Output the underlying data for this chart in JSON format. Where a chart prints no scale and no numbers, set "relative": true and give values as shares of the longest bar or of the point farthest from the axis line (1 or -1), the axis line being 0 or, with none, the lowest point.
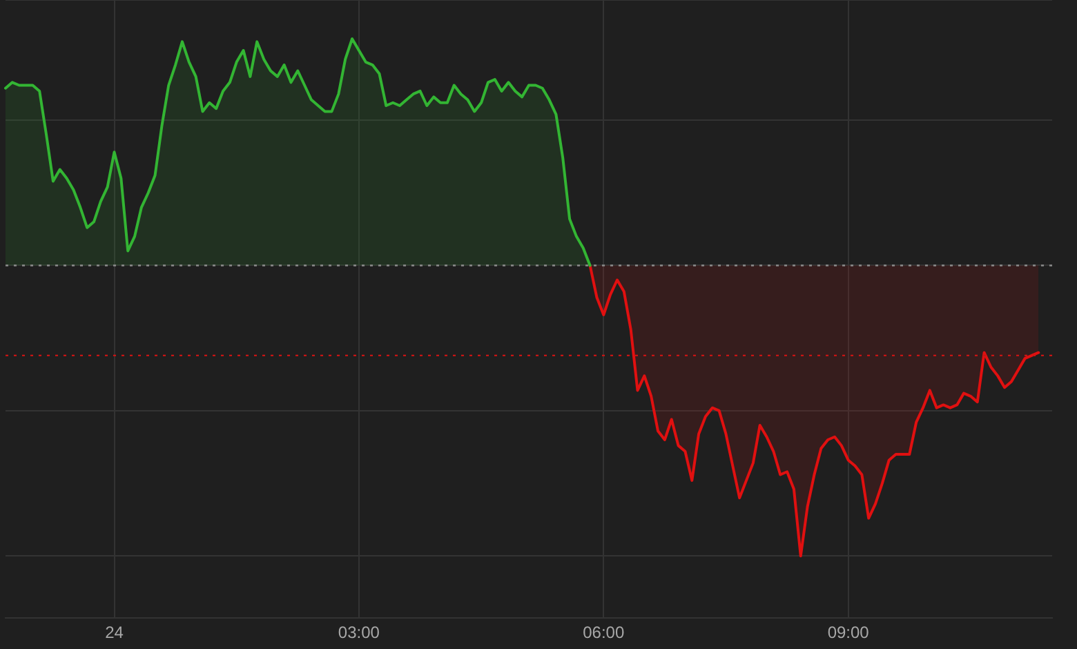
{
  "chart_data": {
    "type": "area",
    "relative": true,
    "categories": [
      null,
      null,
      null,
      null,
      null,
      null,
      null,
      null,
      null,
      null,
      null,
      null,
      null,
      null,
      null,
      null,
      "24",
      null,
      null,
      null,
      null,
      null,
      null,
      null,
      null,
      null,
      null,
      null,
      null,
      null,
      null,
      null,
      null,
      null,
      null,
      null,
      null,
      null,
      null,
      null,
      null,
      null,
      null,
      null,
      null,
      null,
      null,
      null,
      null,
      null,
      null,
      null,
      "03:00",
      null,
      null,
      null,
      null,
      null,
      null,
      null,
      null,
      null,
      null,
      null,
      null,
      null,
      null,
      null,
      null,
      null,
      null,
      null,
      null,
      null,
      null,
      null,
      null,
      null,
      null,
      null,
      null,
      null,
      null,
      null,
      null,
      null,
      null,
      null,
      "06:00",
      null,
      null,
      null,
      null,
      null,
      null,
      null,
      null,
      null,
      null,
      null,
      null,
      null,
      null,
      null,
      null,
      null,
      null,
      null,
      null,
      null,
      null,
      null,
      null,
      null,
      null,
      null,
      null,
      null,
      null,
      null,
      null,
      null,
      null,
      null,
      "09:00",
      null,
      null,
      null,
      null,
      null,
      null,
      null,
      null,
      null,
      null,
      null,
      null,
      null,
      null,
      null,
      null,
      null,
      null,
      null,
      null,
      null,
      null,
      null,
      null,
      null,
      null,
      null,
      null,
      null,
      null
    ],
    "grid": true,
    "ref_lines": [
      {
        "axis": "y",
        "value": 0,
        "color": "#8c8c8c",
        "line_style": "dotted"
      },
      {
        "axis": "y",
        "value": -0.31,
        "color": "#c81414",
        "line_style": "dotted"
      }
    ],
    "series": [
      {
        "color": "#33b533",
        "values": [
          0.61,
          0.63,
          0.62,
          0.62,
          0.62,
          0.6,
          0.45,
          0.29,
          0.33,
          0.3,
          0.26,
          0.2,
          0.13,
          0.15,
          0.22,
          0.27,
          0.39,
          0.3,
          0.05,
          0.1,
          0.2,
          0.25,
          0.31,
          0.48,
          0.62,
          0.69,
          0.77,
          0.7,
          0.65,
          0.53,
          0.56,
          0.54,
          0.6,
          0.63,
          0.7,
          0.74,
          0.65,
          0.77,
          0.71,
          0.67,
          0.65,
          0.69,
          0.63,
          0.67,
          0.62,
          0.57,
          0.55,
          0.53,
          0.53,
          0.59,
          0.71,
          0.78,
          0.74,
          0.7,
          0.69,
          0.66,
          0.55,
          0.56,
          0.55,
          0.57,
          0.59,
          0.6,
          0.55,
          0.58,
          0.56,
          0.56,
          0.62,
          0.59,
          0.57,
          0.53,
          0.56,
          0.63,
          0.64,
          0.6,
          0.63,
          0.6,
          0.58,
          0.62,
          0.62,
          0.61,
          0.57,
          0.52,
          0.37,
          0.16,
          0.1,
          0.06,
          0,
          null,
          null,
          null,
          null,
          null,
          null,
          null,
          null,
          null,
          null,
          null,
          null,
          null,
          null,
          null,
          null,
          null,
          null,
          null,
          null,
          null,
          null,
          null,
          null,
          null,
          null,
          null,
          null,
          null,
          null,
          null,
          null,
          null,
          null,
          null,
          null,
          null,
          null,
          null,
          null,
          null,
          null,
          null,
          null,
          null,
          null,
          null,
          null,
          null,
          null,
          null,
          null,
          null,
          null,
          null,
          null,
          null,
          null,
          null,
          null,
          null,
          null,
          null,
          null,
          null,
          null,
          null,
          null
        ]
      },
      {
        "color": "#e01010",
        "values": [
          null,
          null,
          null,
          null,
          null,
          null,
          null,
          null,
          null,
          null,
          null,
          null,
          null,
          null,
          null,
          null,
          null,
          null,
          null,
          null,
          null,
          null,
          null,
          null,
          null,
          null,
          null,
          null,
          null,
          null,
          null,
          null,
          null,
          null,
          null,
          null,
          null,
          null,
          null,
          null,
          null,
          null,
          null,
          null,
          null,
          null,
          null,
          null,
          null,
          null,
          null,
          null,
          null,
          null,
          null,
          null,
          null,
          null,
          null,
          null,
          null,
          null,
          null,
          null,
          null,
          null,
          null,
          null,
          null,
          null,
          null,
          null,
          null,
          null,
          null,
          null,
          null,
          null,
          null,
          null,
          null,
          null,
          null,
          null,
          null,
          null,
          0,
          -0.11,
          -0.17,
          -0.1,
          -0.05,
          -0.09,
          -0.22,
          -0.43,
          -0.38,
          -0.45,
          -0.57,
          -0.6,
          -0.53,
          -0.62,
          -0.64,
          -0.74,
          -0.58,
          -0.52,
          -0.49,
          -0.5,
          -0.58,
          -0.69,
          -0.8,
          -0.74,
          -0.68,
          -0.55,
          -0.59,
          -0.64,
          -0.72,
          -0.71,
          -0.77,
          -1,
          -0.83,
          -0.72,
          -0.63,
          -0.6,
          -0.59,
          -0.62,
          -0.67,
          -0.69,
          -0.72,
          -0.87,
          -0.82,
          -0.75,
          -0.67,
          -0.65,
          -0.65,
          -0.65,
          -0.54,
          -0.49,
          -0.43,
          -0.49,
          -0.48,
          -0.49,
          -0.48,
          -0.44,
          -0.45,
          -0.47,
          -0.3,
          -0.35,
          -0.38,
          -0.42,
          -0.4,
          -0.36,
          -0.32,
          -0.31,
          -0.3,
          null,
          null
        ]
      }
    ]
  }
}
